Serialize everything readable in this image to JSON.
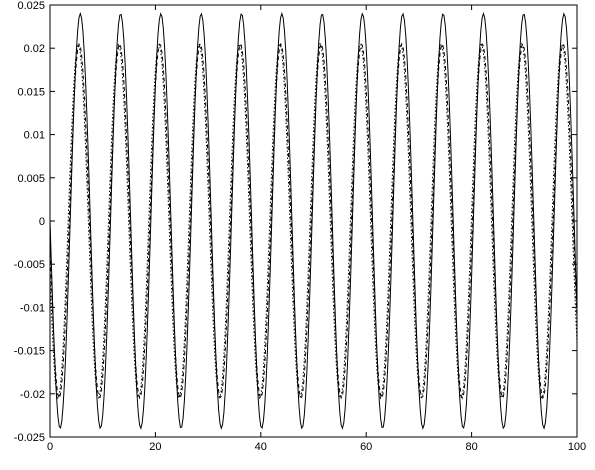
{
  "chart_data": {
    "type": "line",
    "title": "",
    "xlabel": "",
    "ylabel": "",
    "xlim": [
      0,
      100
    ],
    "ylim": [
      -0.025,
      0.025
    ],
    "grid": false,
    "legend": "none",
    "x_ticks": [
      "0",
      "20",
      "40",
      "60",
      "80",
      "100"
    ],
    "y_ticks": [
      "0.025",
      "0.02",
      "0.015",
      "0.01",
      "0.005",
      "0",
      "-0.005",
      "-0.01",
      "-0.015",
      "-0.02",
      "-0.025"
    ],
    "series": [
      {
        "style": "solid",
        "amplitude": 0.024,
        "period": 7.65,
        "phase_x": 3.83,
        "x_start": 0,
        "x_end": 100,
        "sample_step": 0.25
      },
      {
        "style": "dashed",
        "amplitude": 0.0205,
        "period": 7.65,
        "phase_x": 3.65,
        "x_start": 0,
        "x_end": 100,
        "sample_step": 0.25
      },
      {
        "style": "dotted",
        "amplitude": 0.0205,
        "period": 7.65,
        "phase_x": 3.45,
        "x_start": 0,
        "x_end": 100,
        "sample_step": 0.25
      }
    ]
  }
}
